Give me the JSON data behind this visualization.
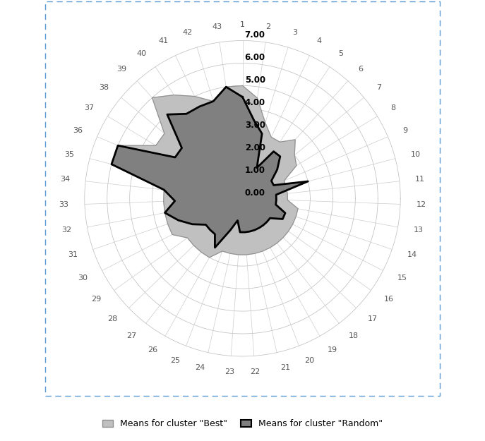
{
  "n_axes": 43,
  "labels": [
    "1",
    "2",
    "3",
    "4",
    "5",
    "6",
    "7",
    "8",
    "9",
    "10",
    "11",
    "12",
    "13",
    "14",
    "15",
    "16",
    "17",
    "18",
    "19",
    "20",
    "21",
    "22",
    "23",
    "24",
    "25",
    "26",
    "27",
    "28",
    "29",
    "30",
    "31",
    "32",
    "33",
    "34",
    "35",
    "36",
    "37",
    "38",
    "39",
    "40",
    "41",
    "42",
    "43"
  ],
  "best": [
    5.0,
    4.5,
    3.5,
    3.0,
    3.0,
    3.5,
    3.0,
    2.8,
    2.0,
    2.0,
    2.0,
    2.0,
    2.5,
    2.5,
    2.5,
    2.5,
    2.5,
    2.5,
    2.5,
    2.5,
    2.5,
    2.5,
    2.5,
    2.5,
    2.5,
    3.0,
    3.0,
    3.0,
    3.0,
    3.5,
    3.5,
    3.5,
    3.5,
    3.5,
    5.5,
    6.0,
    4.5,
    4.5,
    6.0,
    5.5,
    5.0,
    4.5,
    5.0
  ],
  "random": [
    4.5,
    3.5,
    3.0,
    1.5,
    2.5,
    2.5,
    2.0,
    1.5,
    1.5,
    3.0,
    1.5,
    1.5,
    1.5,
    2.0,
    2.0,
    1.5,
    1.5,
    1.5,
    1.5,
    1.5,
    1.5,
    1.5,
    1.5,
    1.0,
    1.5,
    2.5,
    2.0,
    2.0,
    2.0,
    2.5,
    3.0,
    3.5,
    3.0,
    3.5,
    6.0,
    6.0,
    3.5,
    3.5,
    5.0,
    4.5,
    4.5,
    4.5,
    5.0
  ],
  "y_max": 7.0,
  "y_ticks": [
    0.0,
    1.0,
    2.0,
    3.0,
    4.0,
    5.0,
    6.0,
    7.0
  ],
  "color_best": "#C0C0C0",
  "color_random": "#808080",
  "edge_best": "#909090",
  "edge_random": "#000000",
  "background_color": "#FFFFFF",
  "legend_best": "Means for cluster \"Best\"",
  "legend_random": "Means for cluster \"Random\"",
  "border_color": "#5B9BD5",
  "fig_width": 6.87,
  "fig_height": 6.25,
  "label_fontsize": 8,
  "tick_fontsize": 8.5
}
